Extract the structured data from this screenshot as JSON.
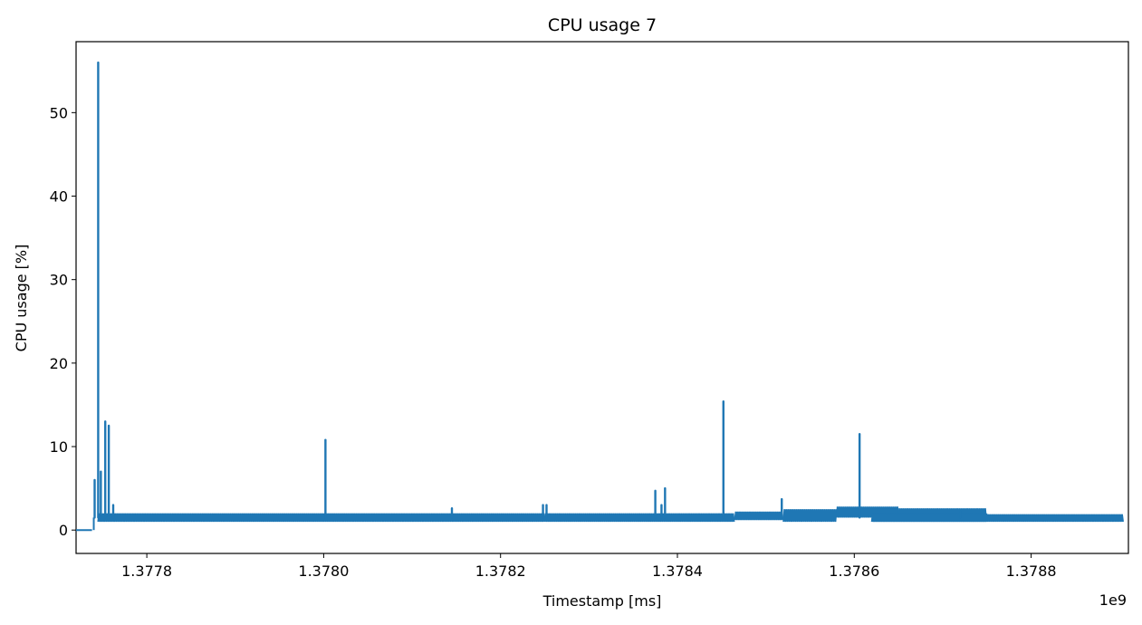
{
  "chart_data": {
    "type": "line",
    "title": "CPU usage 7",
    "xlabel": "Timestamp [ms]",
    "ylabel": "CPU usage [%]",
    "x_offset_label": "1e9",
    "xlim": [
      1.37772,
      1.37891
    ],
    "ylim": [
      -2.8,
      58.5
    ],
    "x_ticks": [
      {
        "value": 1.3778,
        "label": "1.3778"
      },
      {
        "value": 1.378,
        "label": "1.3780"
      },
      {
        "value": 1.3782,
        "label": "1.3782"
      },
      {
        "value": 1.3784,
        "label": "1.3784"
      },
      {
        "value": 1.3786,
        "label": "1.3786"
      },
      {
        "value": 1.3788,
        "label": "1.3788"
      }
    ],
    "y_ticks": [
      {
        "value": 0,
        "label": "0"
      },
      {
        "value": 10,
        "label": "10"
      },
      {
        "value": 20,
        "label": "20"
      },
      {
        "value": 30,
        "label": "30"
      },
      {
        "value": 40,
        "label": "40"
      },
      {
        "value": 50,
        "label": "50"
      }
    ],
    "grid": false,
    "legend": "none",
    "series": [
      {
        "color": "#1f77b4",
        "baseline_bands": [
          {
            "x_start": 1.37772,
            "x_end": 1.377738,
            "low": 0,
            "high": 0
          },
          {
            "x_start": 1.377745,
            "x_end": 1.37825,
            "low": 1,
            "high": 2
          },
          {
            "x_start": 1.37825,
            "x_end": 1.378465,
            "low": 1,
            "high": 2
          },
          {
            "x_start": 1.378465,
            "x_end": 1.37852,
            "low": 1.2,
            "high": 2.2
          },
          {
            "x_start": 1.37852,
            "x_end": 1.37858,
            "low": 1,
            "high": 2.5
          },
          {
            "x_start": 1.37858,
            "x_end": 1.37865,
            "low": 1.5,
            "high": 2.8
          },
          {
            "x_start": 1.37865,
            "x_end": 1.37875,
            "low": 1.2,
            "high": 2.6
          },
          {
            "x_start": 1.37875,
            "x_end": 1.37862,
            "low": 1,
            "high": 2
          },
          {
            "x_start": 1.37862,
            "x_end": 1.378905,
            "low": 1,
            "high": 1.9
          }
        ],
        "spikes": [
          {
            "x": 1.377741,
            "y": 6
          },
          {
            "x": 1.377745,
            "y": 56
          },
          {
            "x": 1.377748,
            "y": 7
          },
          {
            "x": 1.377753,
            "y": 13
          },
          {
            "x": 1.377757,
            "y": 12.5
          },
          {
            "x": 1.377762,
            "y": 3
          },
          {
            "x": 1.378002,
            "y": 10.8
          },
          {
            "x": 1.378145,
            "y": 2.6
          },
          {
            "x": 1.378248,
            "y": 3
          },
          {
            "x": 1.378252,
            "y": 3
          },
          {
            "x": 1.378375,
            "y": 4.7
          },
          {
            "x": 1.378382,
            "y": 3
          },
          {
            "x": 1.378386,
            "y": 5
          },
          {
            "x": 1.378452,
            "y": 15.4
          },
          {
            "x": 1.378518,
            "y": 3.7
          },
          {
            "x": 1.378606,
            "y": 11.5
          },
          {
            "x": 1.37872,
            "y": 2.2
          }
        ]
      }
    ]
  }
}
